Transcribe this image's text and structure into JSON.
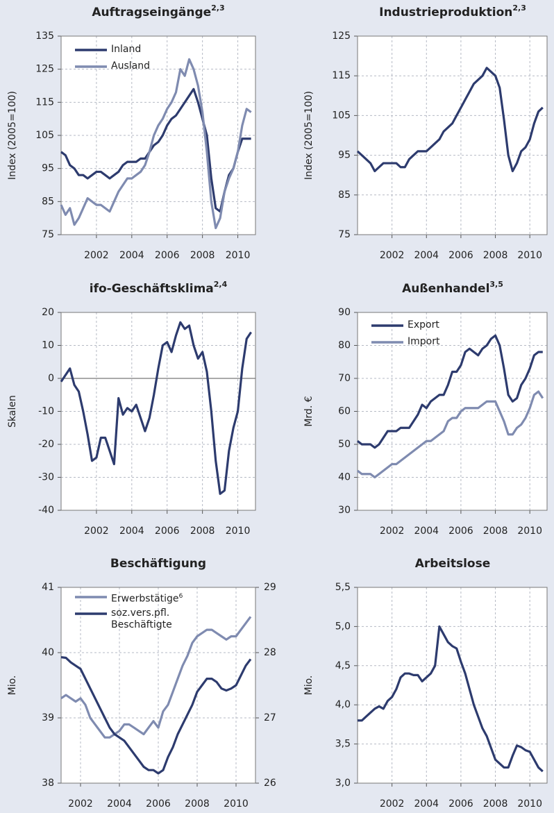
{
  "chart_data": [
    {
      "type": "line",
      "title": "Auftragseingänge",
      "title_sup": "2,3",
      "ylabel": "Index (2005=100)",
      "x": [
        2000,
        2000.25,
        2000.5,
        2000.75,
        2001,
        2001.25,
        2001.5,
        2001.75,
        2002,
        2002.25,
        2002.5,
        2002.75,
        2003,
        2003.25,
        2003.5,
        2003.75,
        2004,
        2004.25,
        2004.5,
        2004.75,
        2005,
        2005.25,
        2005.5,
        2005.75,
        2006,
        2006.25,
        2006.5,
        2006.75,
        2007,
        2007.25,
        2007.5,
        2007.75,
        2008,
        2008.25,
        2008.5,
        2008.75,
        2009,
        2009.25,
        2009.5,
        2009.75,
        2010,
        2010.25,
        2010.5,
        2010.75
      ],
      "series": [
        {
          "name": "Inland",
          "color": "#2d3b6e",
          "values": [
            100,
            99,
            96,
            95,
            93,
            93,
            92,
            93,
            94,
            94,
            93,
            92,
            93,
            94,
            96,
            97,
            97,
            97,
            98,
            98,
            100,
            102,
            103,
            105,
            108,
            110,
            111,
            113,
            115,
            117,
            119,
            115,
            110,
            105,
            92,
            83,
            82,
            88,
            93,
            95,
            100,
            104,
            104,
            104
          ]
        },
        {
          "name": "Ausland",
          "color": "#7f8bb0",
          "values": [
            84,
            81,
            83,
            78,
            80,
            83,
            86,
            85,
            84,
            84,
            83,
            82,
            85,
            88,
            90,
            92,
            92,
            93,
            94,
            96,
            100,
            105,
            108,
            110,
            113,
            115,
            118,
            125,
            123,
            128,
            125,
            120,
            112,
            100,
            85,
            77,
            80,
            88,
            92,
            95,
            100,
            108,
            113,
            112
          ]
        }
      ],
      "xlim": [
        2000,
        2011
      ],
      "xticks": [
        2002,
        2004,
        2006,
        2008,
        2010
      ],
      "ylim": [
        75,
        135
      ],
      "yticks": [
        75,
        85,
        95,
        105,
        115,
        125,
        135
      ],
      "grid": true,
      "legend": "upper left"
    },
    {
      "type": "line",
      "title": "Industrieproduktion",
      "title_sup": "2,3",
      "ylabel": "Index (2005=100)",
      "x": [
        2000,
        2000.25,
        2000.5,
        2000.75,
        2001,
        2001.25,
        2001.5,
        2001.75,
        2002,
        2002.25,
        2002.5,
        2002.75,
        2003,
        2003.25,
        2003.5,
        2003.75,
        2004,
        2004.25,
        2004.5,
        2004.75,
        2005,
        2005.25,
        2005.5,
        2005.75,
        2006,
        2006.25,
        2006.5,
        2006.75,
        2007,
        2007.25,
        2007.5,
        2007.75,
        2008,
        2008.25,
        2008.5,
        2008.75,
        2009,
        2009.25,
        2009.5,
        2009.75,
        2010,
        2010.25,
        2010.5,
        2010.75
      ],
      "series": [
        {
          "color": "#2d3b6e",
          "values": [
            96,
            95,
            94,
            93,
            91,
            92,
            93,
            93,
            93,
            93,
            92,
            92,
            94,
            95,
            96,
            96,
            96,
            97,
            98,
            99,
            101,
            102,
            103,
            105,
            107,
            109,
            111,
            113,
            114,
            115,
            117,
            116,
            115,
            112,
            104,
            95,
            91,
            93,
            96,
            97,
            99,
            103,
            106,
            107
          ]
        }
      ],
      "xlim": [
        2000,
        2011
      ],
      "xticks": [
        2002,
        2004,
        2006,
        2008,
        2010
      ],
      "ylim": [
        75,
        125
      ],
      "yticks": [
        75,
        85,
        95,
        105,
        115,
        125
      ],
      "grid": true
    },
    {
      "type": "line",
      "title": "ifo-Geschäftsklima",
      "title_sup": "2,4",
      "ylabel": "Skalen",
      "x": [
        2000,
        2000.25,
        2000.5,
        2000.75,
        2001,
        2001.25,
        2001.5,
        2001.75,
        2002,
        2002.25,
        2002.5,
        2002.75,
        2003,
        2003.25,
        2003.5,
        2003.75,
        2004,
        2004.25,
        2004.5,
        2004.75,
        2005,
        2005.25,
        2005.5,
        2005.75,
        2006,
        2006.25,
        2006.5,
        2006.75,
        2007,
        2007.25,
        2007.5,
        2007.75,
        2008,
        2008.25,
        2008.5,
        2008.75,
        2009,
        2009.25,
        2009.5,
        2009.75,
        2010,
        2010.25,
        2010.5,
        2010.75
      ],
      "series": [
        {
          "color": "#2d3b6e",
          "values": [
            -1,
            1,
            3,
            -2,
            -4,
            -10,
            -17,
            -25,
            -24,
            -18,
            -18,
            -22,
            -26,
            -6,
            -11,
            -9,
            -10,
            -8,
            -12,
            -16,
            -12,
            -5,
            3,
            10,
            11,
            8,
            13,
            17,
            15,
            16,
            10,
            6,
            8,
            2,
            -10,
            -25,
            -35,
            -34,
            -22,
            -15,
            -10,
            3,
            12,
            14
          ]
        }
      ],
      "xlim": [
        2000,
        2011
      ],
      "xticks": [
        2002,
        2004,
        2006,
        2008,
        2010
      ],
      "ylim": [
        -40,
        20
      ],
      "yticks": [
        -40,
        -30,
        -20,
        -10,
        0,
        10,
        20
      ],
      "grid": true,
      "zero_line": true
    },
    {
      "type": "line",
      "title": "Außenhandel",
      "title_sup": "3,5",
      "ylabel": "Mrd. €",
      "x": [
        2000,
        2000.25,
        2000.5,
        2000.75,
        2001,
        2001.25,
        2001.5,
        2001.75,
        2002,
        2002.25,
        2002.5,
        2002.75,
        2003,
        2003.25,
        2003.5,
        2003.75,
        2004,
        2004.25,
        2004.5,
        2004.75,
        2005,
        2005.25,
        2005.5,
        2005.75,
        2006,
        2006.25,
        2006.5,
        2006.75,
        2007,
        2007.25,
        2007.5,
        2007.75,
        2008,
        2008.25,
        2008.5,
        2008.75,
        2009,
        2009.25,
        2009.5,
        2009.75,
        2010,
        2010.25,
        2010.5,
        2010.75
      ],
      "series": [
        {
          "name": "Export",
          "color": "#2d3b6e",
          "values": [
            51,
            50,
            50,
            50,
            49,
            50,
            52,
            54,
            54,
            54,
            55,
            55,
            55,
            57,
            59,
            62,
            61,
            63,
            64,
            65,
            65,
            68,
            72,
            72,
            74,
            78,
            79,
            78,
            77,
            79,
            80,
            82,
            83,
            80,
            73,
            65,
            63,
            64,
            68,
            70,
            73,
            77,
            78,
            78
          ]
        },
        {
          "name": "Import",
          "color": "#7f8bb0",
          "values": [
            42,
            41,
            41,
            41,
            40,
            41,
            42,
            43,
            44,
            44,
            45,
            46,
            47,
            48,
            49,
            50,
            51,
            51,
            52,
            53,
            54,
            57,
            58,
            58,
            60,
            61,
            61,
            61,
            61,
            62,
            63,
            63,
            63,
            60,
            57,
            53,
            53,
            55,
            56,
            58,
            61,
            65,
            66,
            64
          ]
        }
      ],
      "xlim": [
        2000,
        2011
      ],
      "xticks": [
        2002,
        2004,
        2006,
        2008,
        2010
      ],
      "ylim": [
        30,
        90
      ],
      "yticks": [
        30,
        40,
        50,
        60,
        70,
        80,
        90
      ],
      "grid": true,
      "legend": "upper left"
    },
    {
      "type": "line",
      "title": "Beschäftigung",
      "ylabel": "Mio.",
      "x": [
        2001,
        2001.25,
        2001.5,
        2001.75,
        2002,
        2002.25,
        2002.5,
        2002.75,
        2003,
        2003.25,
        2003.5,
        2003.75,
        2004,
        2004.25,
        2004.5,
        2004.75,
        2005,
        2005.25,
        2005.5,
        2005.75,
        2006,
        2006.25,
        2006.5,
        2006.75,
        2007,
        2007.25,
        2007.5,
        2007.75,
        2008,
        2008.25,
        2008.5,
        2008.75,
        2009,
        2009.25,
        2009.5,
        2009.75,
        2010,
        2010.25,
        2010.5,
        2010.75
      ],
      "series": [
        {
          "name": "Erwerbstätige",
          "name_sup": "6",
          "color": "#7f8bb0",
          "values": [
            39.3,
            39.35,
            39.3,
            39.25,
            39.3,
            39.2,
            39.0,
            38.9,
            38.8,
            38.7,
            38.7,
            38.75,
            38.8,
            38.9,
            38.9,
            38.85,
            38.8,
            38.75,
            38.85,
            38.95,
            38.85,
            39.1,
            39.2,
            39.4,
            39.6,
            39.8,
            39.95,
            40.15,
            40.25,
            40.3,
            40.35,
            40.35,
            40.3,
            40.25,
            40.2,
            40.25,
            40.25,
            40.35,
            40.45,
            40.55
          ]
        },
        {
          "name": "soz.vers.pfl. Beschäftigte",
          "color": "#2d3b6e",
          "axis": "y2",
          "values": [
            27.93,
            27.92,
            27.85,
            27.8,
            27.75,
            27.6,
            27.45,
            27.3,
            27.15,
            27.0,
            26.85,
            26.75,
            26.7,
            26.65,
            26.55,
            26.45,
            26.35,
            26.25,
            26.2,
            26.2,
            26.15,
            26.2,
            26.4,
            26.55,
            26.75,
            26.9,
            27.05,
            27.2,
            27.4,
            27.5,
            27.6,
            27.6,
            27.55,
            27.45,
            27.42,
            27.45,
            27.5,
            27.65,
            27.8,
            27.9
          ]
        }
      ],
      "xlim": [
        2001,
        2011
      ],
      "xticks": [
        2002,
        2004,
        2006,
        2008,
        2010
      ],
      "ylim": [
        38,
        41
      ],
      "yticks": [
        38,
        39,
        40,
        41
      ],
      "y2lim": [
        26,
        29
      ],
      "y2ticks": [
        26,
        27,
        28,
        29
      ],
      "grid": true,
      "legend": "upper left"
    },
    {
      "type": "line",
      "title": "Arbeitslose",
      "ylabel": "Mio.",
      "x": [
        2000,
        2000.25,
        2000.5,
        2000.75,
        2001,
        2001.25,
        2001.5,
        2001.75,
        2002,
        2002.25,
        2002.5,
        2002.75,
        2003,
        2003.25,
        2003.5,
        2003.75,
        2004,
        2004.25,
        2004.5,
        2004.75,
        2005,
        2005.25,
        2005.5,
        2005.75,
        2006,
        2006.25,
        2006.5,
        2006.75,
        2007,
        2007.25,
        2007.5,
        2007.75,
        2008,
        2008.25,
        2008.5,
        2008.75,
        2009,
        2009.25,
        2009.5,
        2009.75,
        2010,
        2010.25,
        2010.5,
        2010.75
      ],
      "series": [
        {
          "color": "#2d3b6e",
          "values": [
            3.8,
            3.8,
            3.85,
            3.9,
            3.95,
            3.98,
            3.95,
            4.05,
            4.1,
            4.2,
            4.35,
            4.4,
            4.4,
            4.38,
            4.38,
            4.3,
            4.35,
            4.4,
            4.5,
            5.0,
            4.9,
            4.8,
            4.75,
            4.72,
            4.55,
            4.4,
            4.2,
            4.0,
            3.85,
            3.7,
            3.6,
            3.45,
            3.3,
            3.25,
            3.2,
            3.2,
            3.35,
            3.48,
            3.46,
            3.42,
            3.4,
            3.3,
            3.2,
            3.15
          ]
        }
      ],
      "xlim": [
        2000,
        2011
      ],
      "xticks": [
        2002,
        2004,
        2006,
        2008,
        2010
      ],
      "ylim": [
        3.0,
        5.5
      ],
      "yticks": [
        {
          "value": 3.0,
          "label": "3,0"
        },
        {
          "value": 3.5,
          "label": "3,5"
        },
        {
          "value": 4.0,
          "label": "4,0"
        },
        {
          "value": 4.5,
          "label": "4,5"
        },
        {
          "value": 5.0,
          "label": "5,0"
        },
        {
          "value": 5.5,
          "label": "5,5"
        }
      ],
      "grid": true
    }
  ]
}
